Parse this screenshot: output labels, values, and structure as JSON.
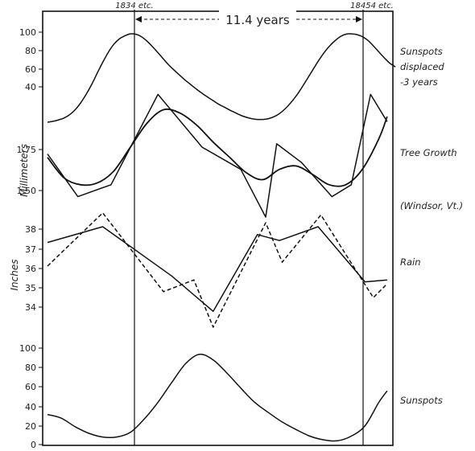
{
  "chart_data": {
    "type": "line",
    "x_markers": [
      "1834 etc.",
      "11.4 years",
      "18454 etc."
    ],
    "panels": [
      {
        "id": "sunspots-displaced",
        "label_lines": [
          "Sunspots",
          "displaced",
          "-3 years"
        ],
        "y_ticks": [
          "100",
          "80",
          "60",
          "40"
        ],
        "series": [
          {
            "style": "solid",
            "x": [
              0,
              0.2,
              0.4,
              0.6,
              0.8,
              1.0,
              1.2,
              1.4,
              1.6,
              1.8,
              2.0,
              2.2,
              2.4,
              2.6,
              2.8,
              3.0,
              3.2,
              3.4,
              3.6,
              3.8,
              4.0,
              4.2,
              4.4,
              4.6,
              4.8,
              5.0,
              5.2,
              5.4,
              5.6,
              5.8,
              6.0,
              6.2,
              6.4,
              6.6,
              6.8,
              7.0,
              7.2,
              7.4,
              7.6,
              7.8,
              8.0,
              8.2,
              8.4,
              8.6,
              8.8,
              9.0,
              9.2,
              9.4,
              9.6,
              9.8,
              10.0,
              10.2,
              10.4,
              10.6,
              10.8,
              11.0,
              11.2,
              11.4,
              11.6,
              11.8,
              12.0,
              12.2,
              12.4,
              12.6
            ],
            "y": [
              0,
              1,
              2.6,
              4.7,
              8.4,
              13.9,
              21.6,
              31.2,
              42.3,
              54.9,
              67.1,
              78.3,
              87.2,
              93.3,
              96.8,
              99.0,
              98.6,
              95.9,
              90.9,
              84.7,
              77.9,
              70.7,
              63.9,
              57.9,
              52.3,
              46.8,
              41.8,
              36.9,
              32.3,
              28.1,
              24.1,
              20.1,
              16.9,
              13.6,
              10.6,
              7.7,
              5.5,
              4.0,
              3.1,
              3.1,
              4.0,
              6.1,
              9.6,
              14.9,
              21.4,
              29.2,
              38.4,
              48.2,
              58.3,
              68.2,
              77.2,
              84.9,
              91.0,
              95.9,
              98.6,
              99.0,
              98.2,
              95.9,
              91.7,
              85.6,
              78.7,
              72.0,
              66.0,
              62.0
            ]
          }
        ]
      },
      {
        "id": "tree-growth",
        "label_lines": [
          "Tree Growth",
          "(Windsor, Vt.)"
        ],
        "ylabel": "Millimeters",
        "y_ticks": [
          "1.75",
          "1.50"
        ],
        "series": [
          {
            "style": "jagged",
            "x": [
              0,
              1.1,
              2.3,
              4.0,
              5.6,
              7.0,
              7.9,
              8.3,
              9.2,
              10.3,
              11.0,
              11.7,
              12.3
            ],
            "y": [
              1.7,
              1.45,
              1.52,
              2.05,
              1.74,
              1.61,
              1.33,
              1.76,
              1.65,
              1.45,
              1.52,
              2.05,
              1.89
            ]
          },
          {
            "style": "smooth",
            "x": [
              0,
              0.6,
              1.2,
              1.8,
              2.4,
              3.0,
              3.6,
              4.2,
              4.8,
              5.4,
              6.0,
              6.6,
              7.2,
              7.8,
              8.4,
              9.0,
              9.6,
              10.2,
              10.8,
              11.4,
              12.0,
              12.3
            ],
            "y": [
              1.68,
              1.56,
              1.52,
              1.53,
              1.6,
              1.74,
              1.88,
              1.96,
              1.94,
              1.87,
              1.77,
              1.68,
              1.59,
              1.55,
              1.61,
              1.63,
              1.58,
              1.52,
              1.52,
              1.61,
              1.79,
              1.92
            ]
          }
        ]
      },
      {
        "id": "rain",
        "label_lines": [
          "Rain"
        ],
        "ylabel": "Inches",
        "y_ticks": [
          "38",
          "37",
          "36",
          "35",
          "34"
        ],
        "series": [
          {
            "style": "solid",
            "x": [
              0,
              2.0,
              4.5,
              6.0,
              7.6,
              8.4,
              9.8,
              11.5,
              12.3
            ],
            "y": [
              37.2,
              38.0,
              35.5,
              33.7,
              37.6,
              37.3,
              38.0,
              35.2,
              35.3
            ]
          },
          {
            "style": "dashed",
            "x": [
              0,
              2.0,
              4.2,
              5.3,
              6.0,
              7.9,
              8.5,
              9.9,
              10.8,
              11.8,
              12.3
            ],
            "y": [
              36.0,
              38.7,
              34.7,
              35.3,
              32.9,
              38.2,
              36.2,
              38.6,
              36.6,
              34.4,
              35.1
            ]
          }
        ]
      },
      {
        "id": "sunspots",
        "label_lines": [
          "Sunspots"
        ],
        "y_ticks": [
          "100",
          "80",
          "60",
          "40",
          "20",
          "0"
        ],
        "series": [
          {
            "style": "solid",
            "x": [
              0,
              0.5,
              1.0,
              1.5,
              2.0,
              2.5,
              3.0,
              3.5,
              4.0,
              4.5,
              5.0,
              5.5,
              6.0,
              6.5,
              7.0,
              7.5,
              8.0,
              8.5,
              9.0,
              9.5,
              10.0,
              10.5,
              11.0,
              11.5,
              12.0,
              12.3
            ],
            "y": [
              32,
              28,
              19,
              12,
              8,
              8,
              13,
              27,
              45,
              66,
              86,
              96,
              90,
              76,
              60,
              45,
              34,
              24,
              16,
              9,
              5,
              4,
              9,
              20,
              45,
              57
            ]
          }
        ]
      }
    ]
  }
}
